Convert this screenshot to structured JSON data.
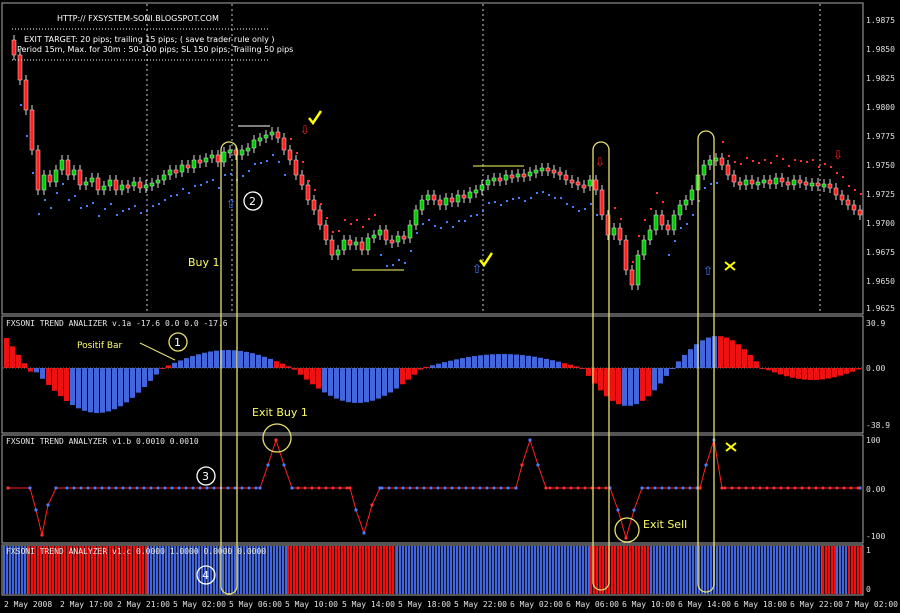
{
  "header": {
    "url": "HTTP:// FXSYSTEM-SONI.BLOGSPOT.COM",
    "exit_line": "EXIT TARGET: 20 pips; trailing 15 pips; ( save trader rule only )",
    "period_line": "Period 15m, Max. for 30m  : 50-100 pips; SL 150 pips; Trailing 50 pips"
  },
  "price_axis": [
    "1.9875",
    "1.9850",
    "1.9825",
    "1.9800",
    "1.9775",
    "1.9750",
    "1.9725",
    "1.9700",
    "1.9675",
    "1.9650",
    "1.9625"
  ],
  "panels": {
    "analizer_a": {
      "title": "FXSONI TREND ANALIZER v.1a -17.6 0.0 0.0 -17.6",
      "axis": [
        "30.9",
        "0.00",
        "-38.9"
      ]
    },
    "analyzer_b": {
      "title": "FXSONI TREND ANALYZER v1.b 0.0010 0.0010",
      "axis": [
        "100",
        "0.00",
        "-100"
      ]
    },
    "analyzer_c": {
      "title": "FXSONI TREND ANALYZER v1.c 0.0000 1.0000 0.0000 0.0000",
      "axis": [
        "1",
        "0"
      ]
    }
  },
  "time_axis": [
    "2 May 2008",
    "2 May 17:00",
    "2 May 21:00",
    "5 May 02:00",
    "5 May 06:00",
    "5 May 10:00",
    "5 May 14:00",
    "5 May 18:00",
    "5 May 22:00",
    "6 May 02:00",
    "6 May 06:00",
    "6 May 10:00",
    "6 May 14:00",
    "6 May 18:00",
    "6 May 22:00",
    "7 May 02:00"
  ],
  "annotations": {
    "buy": "Buy 1",
    "positif_bar": "Positif Bar",
    "exit_buy": "Exit Buy 1",
    "exit_sell": "Exit Sell",
    "markers": [
      "1",
      "2",
      "3",
      "4"
    ]
  },
  "colors": {
    "bull": "#00cc00",
    "bear": "#ff2020",
    "blue": "#4466dd",
    "red_bar": "#ee1111",
    "yellow": "#ffff66",
    "grid": "#ffffff"
  }
}
